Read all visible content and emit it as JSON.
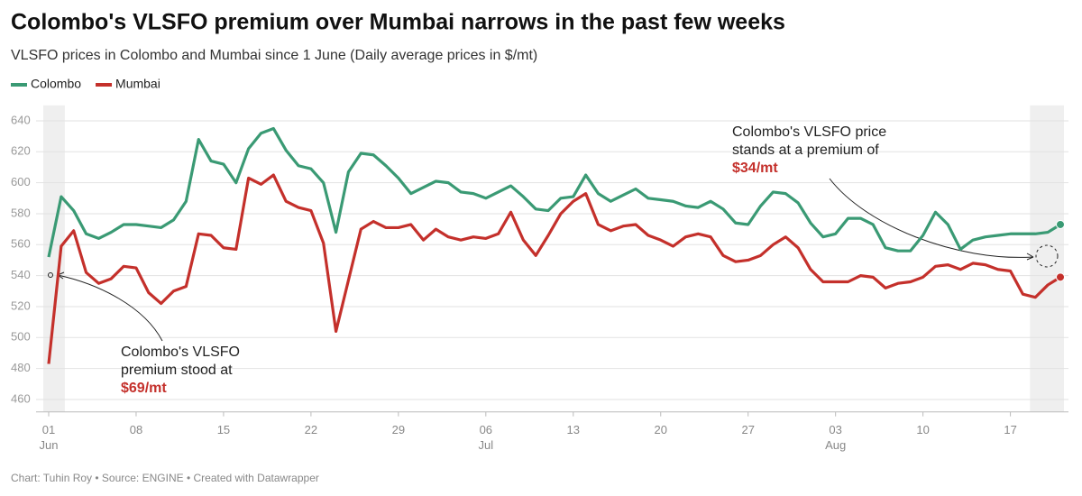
{
  "chart_data": {
    "type": "line",
    "title": "Colombo's VLSFO premium over Mumbai narrows in the past few weeks",
    "subtitle": "VLSFO prices in Colombo and Mumbai since 1 June (Daily average prices in $/mt)",
    "footer": "Chart: Tuhin Roy • Source: ENGINE • Created with Datawrapper",
    "categories": [
      "01\nJun",
      null,
      null,
      null,
      null,
      null,
      null,
      "08",
      null,
      null,
      null,
      null,
      null,
      null,
      "15",
      null,
      null,
      null,
      null,
      null,
      null,
      "22",
      null,
      null,
      null,
      null,
      null,
      null,
      "29",
      null,
      null,
      null,
      null,
      null,
      null,
      "06\nJul",
      null,
      null,
      null,
      null,
      null,
      null,
      "13",
      null,
      null,
      null,
      null,
      null,
      null,
      "20",
      null,
      null,
      null,
      null,
      null,
      null,
      "27",
      null,
      null,
      null,
      null,
      null,
      null,
      "03\nAug",
      null,
      null,
      null,
      null,
      null,
      null,
      "10",
      null,
      null,
      null,
      null,
      null,
      null,
      "17",
      null,
      null,
      null,
      null
    ],
    "series": [
      {
        "name": "Colombo",
        "color": "#3a9a74",
        "values": [
          552,
          591,
          582,
          567,
          564,
          568,
          573,
          573,
          572,
          571,
          576,
          588,
          628,
          614,
          612,
          600,
          622,
          632,
          635,
          621,
          611,
          609,
          600,
          568,
          607,
          619,
          618,
          611,
          603,
          593,
          597,
          601,
          600,
          594,
          593,
          590,
          594,
          598,
          591,
          583,
          582,
          590,
          591,
          605,
          593,
          588,
          592,
          596,
          590,
          589,
          588,
          585,
          584,
          588,
          583,
          574,
          573,
          585,
          594,
          593,
          587,
          574,
          565,
          567,
          577,
          577,
          573,
          558,
          556,
          556,
          566,
          581,
          573,
          557,
          563,
          565,
          566,
          567,
          567,
          567,
          568,
          573
        ]
      },
      {
        "name": "Mumbai",
        "color": "#c4302b",
        "values": [
          483,
          559,
          569,
          542,
          535,
          538,
          546,
          545,
          529,
          522,
          530,
          533,
          567,
          566,
          558,
          557,
          603,
          599,
          605,
          588,
          584,
          582,
          561,
          504,
          537,
          570,
          575,
          571,
          571,
          573,
          563,
          570,
          565,
          563,
          565,
          564,
          567,
          581,
          563,
          553,
          566,
          580,
          588,
          593,
          573,
          569,
          572,
          573,
          566,
          563,
          559,
          565,
          567,
          565,
          553,
          549,
          550,
          553,
          560,
          565,
          558,
          544,
          536,
          536,
          536,
          540,
          539,
          532,
          535,
          536,
          539,
          546,
          547,
          544,
          548,
          547,
          544,
          543,
          528,
          526,
          534,
          539
        ]
      }
    ],
    "ylim": [
      452,
      650
    ],
    "yticks": [
      460,
      480,
      500,
      520,
      540,
      560,
      580,
      600,
      620,
      640
    ],
    "grid": true,
    "legend": "top-left",
    "shaded_ranges": [
      [
        0,
        1
      ],
      [
        79,
        81
      ]
    ],
    "annotations": [
      {
        "lines": [
          "Colombo's VLSFO",
          "premium stood at"
        ],
        "highlight": "$69/mt"
      },
      {
        "lines": [
          "Colombo's VLSFO price",
          "stands at a premium of"
        ],
        "highlight": "$34/mt"
      }
    ]
  }
}
